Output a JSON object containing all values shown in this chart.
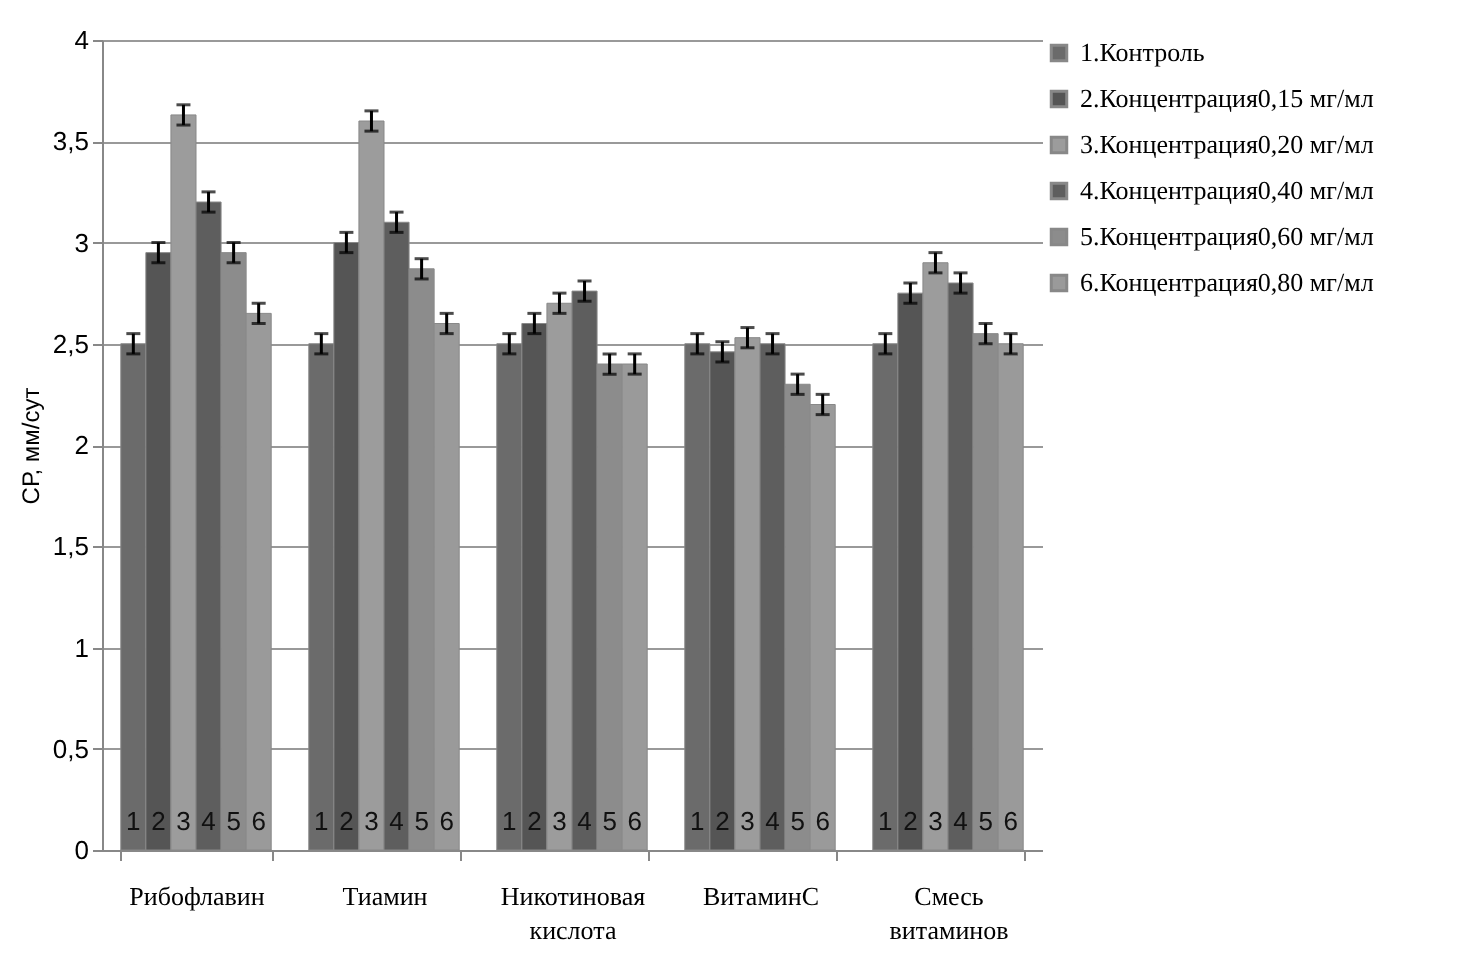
{
  "chart_data": {
    "type": "bar",
    "ylabel": "СР, мм/сут",
    "categories": [
      "Рибофлавин",
      "Тиамин",
      "Никотиновая кислота",
      "ВитаминС",
      "Смесь витаминов"
    ],
    "series": [
      {
        "name": "1.Контроль",
        "color": "#6b6b6b",
        "values": [
          2.5,
          2.5,
          2.5,
          2.5,
          2.5
        ],
        "errors": [
          0.05,
          0.05,
          0.05,
          0.05,
          0.05
        ]
      },
      {
        "name": "2.Концентрация0,15 мг/мл",
        "color": "#555555",
        "values": [
          2.95,
          3.0,
          2.6,
          2.46,
          2.75
        ],
        "errors": [
          0.05,
          0.05,
          0.05,
          0.05,
          0.05
        ]
      },
      {
        "name": "3.Концентрация0,20 мг/мл",
        "color": "#9c9c9c",
        "values": [
          3.63,
          3.6,
          2.7,
          2.53,
          2.9
        ],
        "errors": [
          0.05,
          0.05,
          0.05,
          0.05,
          0.05
        ]
      },
      {
        "name": "4.Концентрация0,40 мг/мл",
        "color": "#5e5e5e",
        "values": [
          3.2,
          3.1,
          2.76,
          2.5,
          2.8
        ],
        "errors": [
          0.05,
          0.05,
          0.05,
          0.05,
          0.05
        ]
      },
      {
        "name": "5.Концентрация0,60 мг/мл",
        "color": "#8c8c8c",
        "values": [
          2.95,
          2.87,
          2.4,
          2.3,
          2.55
        ],
        "errors": [
          0.05,
          0.05,
          0.05,
          0.05,
          0.05
        ]
      },
      {
        "name": "6.Концентрация0,80 мг/мл",
        "color": "#9a9a9a",
        "values": [
          2.65,
          2.6,
          2.4,
          2.2,
          2.5
        ],
        "errors": [
          0.05,
          0.05,
          0.05,
          0.05,
          0.05
        ]
      }
    ],
    "annotations": [
      {
        "text": "1",
        "x": "Рибофлавин"
      },
      {
        "text": "2",
        "x": "Рибофлавин"
      },
      {
        "text": "3",
        "x": "Рибофлавин"
      },
      {
        "text": "4",
        "x": "Рибофлавин"
      },
      {
        "text": "5",
        "x": "Рибофлавин"
      },
      {
        "text": "6",
        "x": "Рибофлавин"
      },
      {
        "text": "1",
        "x": "Тиамин"
      },
      {
        "text": "2",
        "x": "Тиамин"
      },
      {
        "text": "3",
        "x": "Тиамин"
      },
      {
        "text": "4",
        "x": "Тиамин"
      },
      {
        "text": "5",
        "x": "Тиамин"
      },
      {
        "text": "6",
        "x": "Тиамин"
      },
      {
        "text": "1",
        "x": "Никотиновая кислота"
      },
      {
        "text": "2",
        "x": "Никотиновая кислота"
      },
      {
        "text": "3",
        "x": "Никотиновая кислота"
      },
      {
        "text": "4",
        "x": "Никотиновая кислота"
      },
      {
        "text": "5",
        "x": "Никотиновая кислота"
      },
      {
        "text": "6",
        "x": "Никотиновая кислота"
      },
      {
        "text": "1",
        "x": "ВитаминС"
      },
      {
        "text": "2",
        "x": "ВитаминС"
      },
      {
        "text": "3",
        "x": "ВитаминС"
      },
      {
        "text": "4",
        "x": "ВитаминС"
      },
      {
        "text": "5",
        "x": "ВитаминС"
      },
      {
        "text": "6",
        "x": "ВитаминС"
      },
      {
        "text": "1",
        "x": "Смесь витаминов"
      },
      {
        "text": "2",
        "x": "Смесь витаминов"
      },
      {
        "text": "3",
        "x": "Смесь витаминов"
      },
      {
        "text": "4",
        "x": "Смесь витаминов"
      },
      {
        "text": "5",
        "x": "Смесь витаминов"
      },
      {
        "text": "6",
        "x": "Смесь витаминов"
      }
    ],
    "ylim": [
      0,
      4
    ],
    "yticks": [
      {
        "value": 0,
        "label": "0"
      },
      {
        "value": 0.5,
        "label": "0,5"
      },
      {
        "value": 1,
        "label": "1"
      },
      {
        "value": 1.5,
        "label": "1,5"
      },
      {
        "value": 2,
        "label": "2"
      },
      {
        "value": 2.5,
        "label": "2,5"
      },
      {
        "value": 3,
        "label": "3"
      },
      {
        "value": 3.5,
        "label": "3,5"
      },
      {
        "value": 4,
        "label": "4"
      }
    ],
    "grid": "y",
    "legend": "right"
  }
}
